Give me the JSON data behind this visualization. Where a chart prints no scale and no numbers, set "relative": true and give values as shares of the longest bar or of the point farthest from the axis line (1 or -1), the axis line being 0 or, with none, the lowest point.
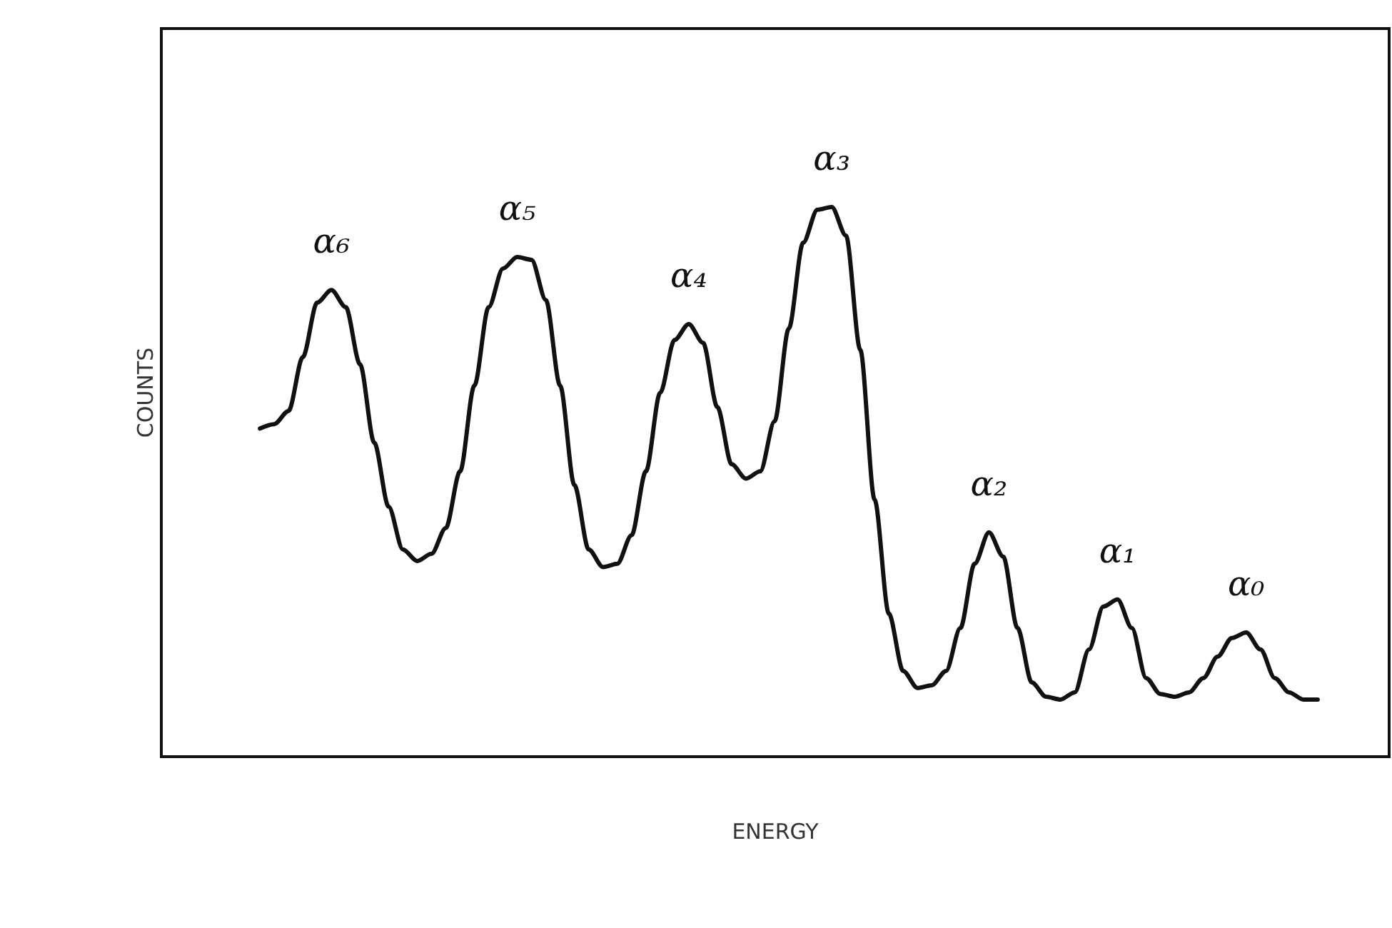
{
  "chart_data": {
    "type": "line",
    "relative": true,
    "xlabel": "ENERGY",
    "ylabel": "COUNTS",
    "color": "#111111",
    "grid": false,
    "annotations": [
      "α₆",
      "α₅",
      "α₄",
      "α₃",
      "α₂",
      "α₁",
      "α₀"
    ],
    "categories": [
      null,
      null,
      null,
      null,
      null,
      null,
      null,
      null,
      null,
      null,
      null,
      null,
      null,
      null,
      null,
      null,
      null,
      null,
      null,
      null,
      null,
      null,
      null,
      null,
      null,
      null,
      null,
      null,
      null,
      null,
      null,
      null,
      null,
      null,
      null,
      null,
      null,
      null,
      null,
      null,
      null,
      null,
      null,
      null,
      null,
      null,
      null,
      null,
      null,
      null,
      null,
      null,
      null,
      null,
      null,
      null,
      null,
      null,
      null,
      null,
      null,
      null,
      null,
      null,
      null,
      null,
      null,
      null,
      null,
      null,
      null,
      null,
      null,
      null,
      null
    ],
    "values": [
      0.597,
      0.605,
      0.629,
      0.727,
      0.826,
      0.849,
      0.818,
      0.714,
      0.571,
      0.455,
      0.377,
      0.356,
      0.369,
      0.416,
      0.519,
      0.675,
      0.818,
      0.888,
      0.909,
      0.904,
      0.831,
      0.675,
      0.494,
      0.377,
      0.345,
      0.351,
      0.403,
      0.519,
      0.662,
      0.758,
      0.787,
      0.753,
      0.636,
      0.532,
      0.506,
      0.519,
      0.61,
      0.779,
      0.935,
      0.995,
      1,
      0.948,
      0.74,
      0.468,
      0.26,
      0.156,
      0.125,
      0.13,
      0.156,
      0.234,
      0.351,
      0.408,
      0.364,
      0.234,
      0.135,
      0.109,
      0.104,
      0.117,
      0.195,
      0.273,
      0.286,
      0.234,
      0.143,
      0.114,
      0.109,
      0.117,
      0.143,
      0.182,
      0.216,
      0.226,
      0.195,
      0.143,
      0.117,
      0.104,
      0.104
    ]
  }
}
